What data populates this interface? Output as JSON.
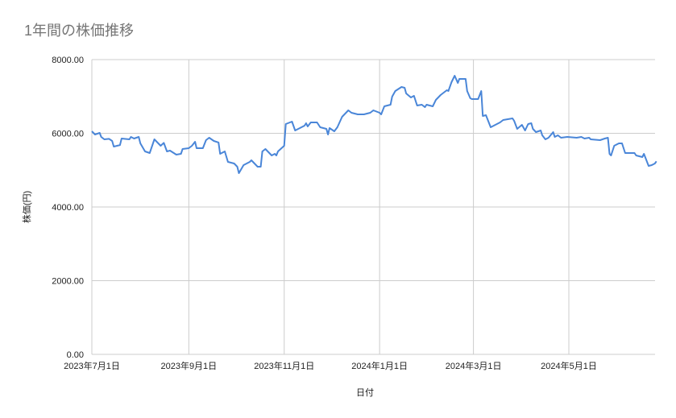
{
  "chart_data": {
    "type": "line",
    "title": "1年間の株価推移",
    "xlabel": "日付",
    "ylabel": "株価(円)",
    "ylim": [
      0,
      8000
    ],
    "xlim": [
      "2023-07-01",
      "2024-06-26"
    ],
    "yticks": [
      "0.00",
      "2000.00",
      "4000.00",
      "6000.00",
      "8000.00"
    ],
    "ytick_values": [
      0,
      2000,
      4000,
      6000,
      8000
    ],
    "xticks": [
      "2023年7月1日",
      "2023年9月1日",
      "2023年11月1日",
      "2024年1月1日",
      "2024年3月1日",
      "2024年5月1日"
    ],
    "xtick_values": [
      "2023-07-01",
      "2023-09-01",
      "2023-11-01",
      "2024-01-01",
      "2024-03-01",
      "2024-05-01"
    ],
    "grid": true,
    "legend": "none",
    "line_color": "#4a86d8",
    "series": [
      {
        "x": [
          "2023-07-01",
          "2023-07-03",
          "2023-07-06",
          "2023-07-07",
          "2023-07-09",
          "2023-07-12",
          "2023-07-14",
          "2023-07-15",
          "2023-07-19",
          "2023-07-20",
          "2023-07-25",
          "2023-07-26",
          "2023-07-28",
          "2023-07-31",
          "2023-08-01",
          "2023-08-04",
          "2023-08-07",
          "2023-08-10",
          "2023-08-14",
          "2023-08-16",
          "2023-08-18",
          "2023-08-20",
          "2023-08-24",
          "2023-08-27",
          "2023-08-28",
          "2023-09-01",
          "2023-09-03",
          "2023-09-05",
          "2023-09-06",
          "2023-09-10",
          "2023-09-12",
          "2023-09-14",
          "2023-09-17",
          "2023-09-20",
          "2023-09-21",
          "2023-09-24",
          "2023-09-26",
          "2023-09-30",
          "2023-10-02",
          "2023-10-03",
          "2023-10-06",
          "2023-10-10",
          "2023-10-11",
          "2023-10-15",
          "2023-10-17",
          "2023-10-18",
          "2023-10-20",
          "2023-10-24",
          "2023-10-26",
          "2023-10-27",
          "2023-10-28",
          "2023-11-01",
          "2023-11-02",
          "2023-11-06",
          "2023-11-08",
          "2023-11-11",
          "2023-11-14",
          "2023-11-15",
          "2023-11-16",
          "2023-11-18",
          "2023-11-22",
          "2023-11-24",
          "2023-11-28",
          "2023-11-29",
          "2023-11-30",
          "2023-12-03",
          "2023-12-05",
          "2023-12-08",
          "2023-12-11",
          "2023-12-12",
          "2023-12-14",
          "2023-12-18",
          "2023-12-22",
          "2023-12-26",
          "2023-12-28",
          "2024-01-01",
          "2024-01-02",
          "2024-01-04",
          "2024-01-08",
          "2024-01-09",
          "2024-01-11",
          "2024-01-15",
          "2024-01-17",
          "2024-01-18",
          "2024-01-21",
          "2024-01-23",
          "2024-01-25",
          "2024-01-28",
          "2024-01-30",
          "2024-01-31",
          "2024-02-04",
          "2024-02-06",
          "2024-02-09",
          "2024-02-13",
          "2024-02-14",
          "2024-02-16",
          "2024-02-18",
          "2024-02-20",
          "2024-02-21",
          "2024-02-25",
          "2024-02-26",
          "2024-02-28",
          "2024-02-29",
          "2024-03-04",
          "2024-03-06",
          "2024-03-07",
          "2024-03-09",
          "2024-03-12",
          "2024-03-15",
          "2024-03-18",
          "2024-03-20",
          "2024-03-23",
          "2024-03-26",
          "2024-03-27",
          "2024-03-29",
          "2024-04-01",
          "2024-04-03",
          "2024-04-05",
          "2024-04-07",
          "2024-04-08",
          "2024-04-10",
          "2024-04-13",
          "2024-04-14",
          "2024-04-16",
          "2024-04-18",
          "2024-04-21",
          "2024-04-22",
          "2024-04-24",
          "2024-04-26",
          "2024-04-30",
          "2024-05-06",
          "2024-05-09",
          "2024-05-11",
          "2024-05-14",
          "2024-05-15",
          "2024-05-21",
          "2024-05-24",
          "2024-05-26",
          "2024-05-27",
          "2024-05-28",
          "2024-05-30",
          "2024-06-02",
          "2024-06-04",
          "2024-06-06",
          "2024-06-12",
          "2024-06-13",
          "2024-06-17",
          "2024-06-18",
          "2024-06-21",
          "2024-06-23",
          "2024-06-25",
          "2024-06-26"
        ],
        "y": [
          6055,
          5967,
          6011,
          5902,
          5836,
          5850,
          5792,
          5639,
          5680,
          5858,
          5836,
          5902,
          5858,
          5902,
          5727,
          5508,
          5464,
          5836,
          5661,
          5740,
          5508,
          5530,
          5421,
          5443,
          5574,
          5596,
          5661,
          5771,
          5596,
          5596,
          5814,
          5880,
          5792,
          5750,
          5443,
          5508,
          5224,
          5180,
          5093,
          4918,
          5137,
          5224,
          5268,
          5093,
          5093,
          5508,
          5574,
          5399,
          5443,
          5399,
          5508,
          5661,
          6251,
          6317,
          6076,
          6142,
          6207,
          6273,
          6185,
          6295,
          6295,
          6164,
          6120,
          5967,
          6142,
          6055,
          6164,
          6448,
          6579,
          6623,
          6557,
          6514,
          6514,
          6557,
          6623,
          6557,
          6514,
          6732,
          6776,
          6995,
          7147,
          7257,
          7235,
          7082,
          6973,
          7016,
          6754,
          6776,
          6710,
          6776,
          6732,
          6907,
          7038,
          7169,
          7147,
          7388,
          7563,
          7366,
          7475,
          7475,
          7147,
          6951,
          6929,
          6929,
          7147,
          6470,
          6492,
          6164,
          6230,
          6295,
          6361,
          6383,
          6405,
          6339,
          6120,
          6230,
          6076,
          6251,
          6273,
          6120,
          6033,
          6076,
          5945,
          5836,
          5880,
          6033,
          5902,
          5945,
          5880,
          5902,
          5880,
          5902,
          5858,
          5880,
          5836,
          5814,
          5858,
          5880,
          5443,
          5399,
          5661,
          5727,
          5727,
          5464,
          5464,
          5399,
          5355,
          5443,
          5115,
          5137,
          5180,
          5240
        ]
      }
    ]
  }
}
